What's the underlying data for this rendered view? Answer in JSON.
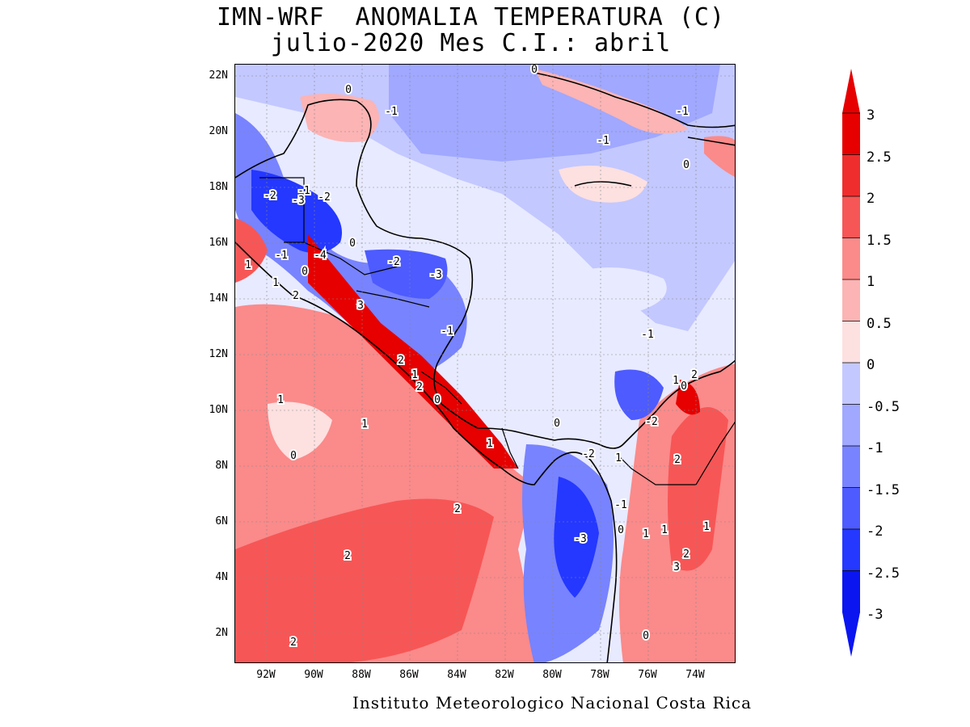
{
  "title": {
    "line1": "IMN-WRF  ANOMALIA TEMPERATURA (C)",
    "line2": "julio-2020 Mes C.I.: abril"
  },
  "credit": "Instituto Meteorologico Nacional Costa Rica",
  "lat_labels": [
    "22N",
    "20N",
    "18N",
    "16N",
    "14N",
    "12N",
    "10N",
    "8N",
    "6N",
    "4N",
    "2N"
  ],
  "lon_labels": [
    "92W",
    "90W",
    "88W",
    "86W",
    "84W",
    "82W",
    "80W",
    "78W",
    "76W",
    "74W"
  ],
  "colorbar": {
    "levels": [
      "3",
      "2.5",
      "2",
      "1.5",
      "1",
      "0.5",
      "0",
      "-0.5",
      "-1",
      "-1.5",
      "-2",
      "-2.5",
      "-3"
    ],
    "colors": [
      "#e60000",
      "#f02d2d",
      "#f75656",
      "#fb8a8a",
      "#fcb4b4",
      "#fde0e0",
      "#e8eaff",
      "#c3c8ff",
      "#a0a8ff",
      "#7883ff",
      "#4d5bff",
      "#2438ff",
      "#0a15f0"
    ]
  },
  "contour_labels": [
    {
      "text": "0"
    },
    {
      "text": "-1"
    },
    {
      "text": "-1"
    },
    {
      "text": "-1"
    },
    {
      "text": "0"
    },
    {
      "text": "0"
    },
    {
      "text": "-2"
    },
    {
      "text": "-3"
    },
    {
      "text": "-1"
    },
    {
      "text": "-2"
    },
    {
      "text": "1"
    },
    {
      "text": "-1"
    },
    {
      "text": "-4"
    },
    {
      "text": "0"
    },
    {
      "text": "1"
    },
    {
      "text": "-2"
    },
    {
      "text": "-3"
    },
    {
      "text": "0"
    },
    {
      "text": "2"
    },
    {
      "text": "3"
    },
    {
      "text": "-1"
    },
    {
      "text": "-1"
    },
    {
      "text": "2"
    },
    {
      "text": "1"
    },
    {
      "text": "2"
    },
    {
      "text": "0"
    },
    {
      "text": "1"
    },
    {
      "text": "1"
    },
    {
      "text": "0"
    },
    {
      "text": "1"
    },
    {
      "text": "2"
    },
    {
      "text": "0"
    },
    {
      "text": "-2"
    },
    {
      "text": "1"
    },
    {
      "text": "-2"
    },
    {
      "text": "1"
    },
    {
      "text": "2"
    },
    {
      "text": "-1"
    },
    {
      "text": "2"
    },
    {
      "text": "0"
    },
    {
      "text": "1"
    },
    {
      "text": "1"
    },
    {
      "text": "-3"
    },
    {
      "text": "1"
    },
    {
      "text": "2"
    },
    {
      "text": "3"
    },
    {
      "text": "2"
    },
    {
      "text": "2"
    },
    {
      "text": "0"
    },
    {
      "text": "0"
    }
  ]
}
